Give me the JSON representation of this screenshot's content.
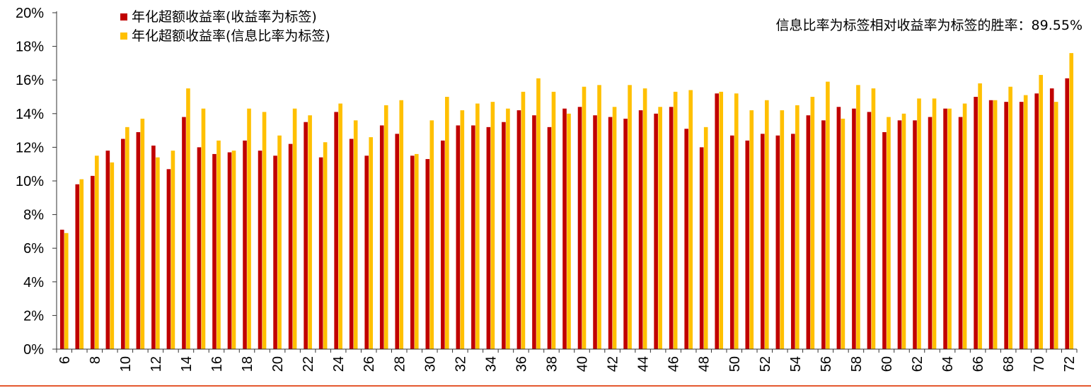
{
  "chart_data": {
    "type": "bar",
    "title": "",
    "xlabel": "",
    "ylabel": "",
    "ylim": [
      0,
      20
    ],
    "y_tick_step": 2,
    "y_unit": "%",
    "x_tick_every": 2,
    "grid": false,
    "legend_position": "top-left",
    "annotation": "信息比率为标签相对收益率为标签的胜率：89.55%",
    "categories": [
      6,
      7,
      8,
      9,
      10,
      11,
      12,
      13,
      14,
      15,
      16,
      17,
      18,
      19,
      20,
      21,
      22,
      23,
      24,
      25,
      26,
      27,
      28,
      29,
      30,
      31,
      32,
      33,
      34,
      35,
      36,
      37,
      38,
      39,
      40,
      41,
      42,
      43,
      44,
      45,
      46,
      47,
      48,
      49,
      50,
      51,
      52,
      53,
      54,
      55,
      56,
      57,
      58,
      59,
      60,
      61,
      62,
      63,
      64,
      65,
      66,
      67,
      68,
      69,
      70,
      71,
      72
    ],
    "series": [
      {
        "name": "年化超额收益率(收益率为标签)",
        "color": "#C00000",
        "values": [
          7.1,
          9.8,
          10.3,
          11.8,
          12.5,
          12.9,
          12.1,
          10.7,
          13.8,
          12.0,
          11.6,
          11.7,
          12.4,
          11.8,
          11.5,
          12.2,
          13.5,
          11.4,
          14.1,
          12.5,
          11.5,
          13.3,
          12.8,
          11.5,
          11.3,
          12.4,
          13.3,
          13.3,
          13.2,
          13.5,
          14.2,
          13.9,
          13.2,
          14.3,
          14.4,
          13.9,
          13.8,
          13.7,
          14.2,
          14.0,
          14.4,
          13.1,
          12.0,
          15.2,
          12.7,
          12.4,
          12.8,
          12.7,
          12.8,
          13.9,
          13.6,
          14.4,
          14.3,
          14.1,
          12.9,
          13.6,
          13.6,
          13.8,
          14.3,
          13.8,
          15.0,
          14.8,
          14.7,
          14.7,
          15.2,
          15.5,
          16.1
        ]
      },
      {
        "name": "年化超额收益率(信息比率为标签)",
        "color": "#FFC000",
        "values": [
          6.9,
          10.1,
          11.5,
          11.1,
          13.2,
          13.7,
          11.4,
          11.8,
          15.5,
          14.3,
          12.4,
          11.8,
          14.3,
          14.1,
          12.7,
          14.3,
          13.9,
          12.3,
          14.6,
          13.6,
          12.6,
          14.5,
          14.8,
          11.6,
          13.6,
          15.0,
          14.2,
          14.6,
          14.7,
          14.3,
          15.3,
          16.1,
          15.3,
          14.0,
          15.6,
          15.7,
          14.4,
          15.7,
          15.5,
          14.4,
          15.3,
          15.4,
          13.2,
          15.3,
          15.2,
          14.2,
          14.8,
          14.2,
          14.5,
          15.0,
          15.9,
          13.7,
          15.7,
          15.5,
          13.8,
          14.0,
          14.9,
          14.9,
          14.3,
          14.6,
          15.8,
          14.8,
          15.6,
          15.1,
          16.3,
          14.7,
          17.6
        ]
      }
    ]
  },
  "colors": {
    "axis": "#333333",
    "bottom_rule": "#E4572E"
  }
}
